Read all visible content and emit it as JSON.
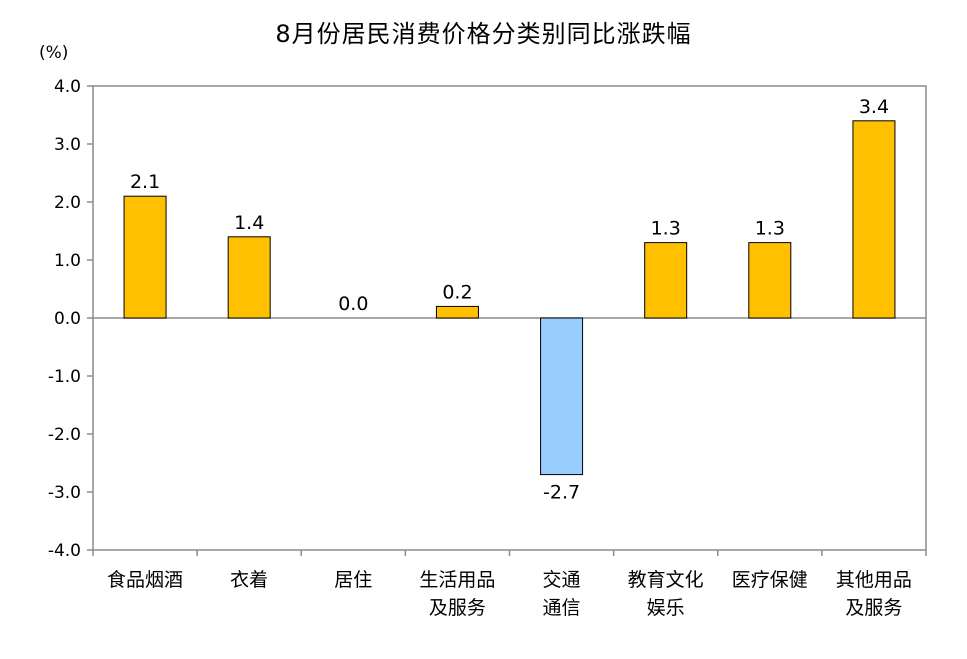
{
  "chart_data": {
    "type": "bar",
    "title": "8月份居民消费价格分类别同比涨跌幅",
    "unit": "(%)",
    "ylim": [
      -4.0,
      4.0
    ],
    "yticks": [
      "4.0",
      "3.0",
      "2.0",
      "1.0",
      "0.0",
      "-1.0",
      "-2.0",
      "-3.0",
      "-4.0"
    ],
    "ytick_values": [
      4,
      3,
      2,
      1,
      0,
      -1,
      -2,
      -3,
      -4
    ],
    "grid": false,
    "legend": "none",
    "categories": [
      [
        "食品烟酒"
      ],
      [
        "衣着"
      ],
      [
        "居住"
      ],
      [
        "生活用品",
        "及服务"
      ],
      [
        "交通",
        "通信"
      ],
      [
        "教育文化",
        "娱乐"
      ],
      [
        "医疗保健"
      ],
      [
        "其他用品",
        "及服务"
      ]
    ],
    "values": [
      2.1,
      1.4,
      0.0,
      0.2,
      -2.7,
      1.3,
      1.3,
      3.4
    ],
    "value_labels": [
      "2.1",
      "1.4",
      "0.0",
      "0.2",
      "-2.7",
      "1.3",
      "1.3",
      "3.4"
    ],
    "colors": {
      "positive": "#FFC000",
      "negative": "#99CCFF",
      "bar_stroke": "#000000",
      "frame": "#8C8C8C"
    }
  }
}
